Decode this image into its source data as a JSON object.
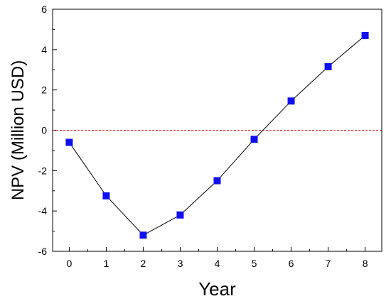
{
  "chart_data": {
    "type": "line",
    "xlabel": "Year",
    "ylabel": "NPV (Million USD)",
    "xlim": [
      -0.45,
      8.45
    ],
    "ylim": [
      -6,
      6
    ],
    "x_ticks": [
      0,
      1,
      2,
      3,
      4,
      5,
      6,
      7,
      8
    ],
    "y_ticks": [
      -6,
      -4,
      -2,
      0,
      2,
      4,
      6
    ],
    "x_tick_labels": [
      "0",
      "1",
      "2",
      "3",
      "4",
      "5",
      "6",
      "7",
      "8"
    ],
    "y_tick_labels": [
      "-6",
      "-4",
      "-2",
      "0",
      "2",
      "4",
      "6"
    ],
    "grid": false,
    "reference_line": {
      "y": 0,
      "style": "dashed",
      "color": "#e02020"
    },
    "series": [
      {
        "x": [
          0,
          1,
          2,
          3,
          4,
          5,
          6,
          7,
          8
        ],
        "values": [
          -0.6,
          -3.25,
          -5.2,
          -4.2,
          -2.5,
          -0.45,
          1.45,
          3.15,
          4.7
        ],
        "line_color": "#000000",
        "marker_color": "#1010ee",
        "marker": "square"
      }
    ]
  }
}
